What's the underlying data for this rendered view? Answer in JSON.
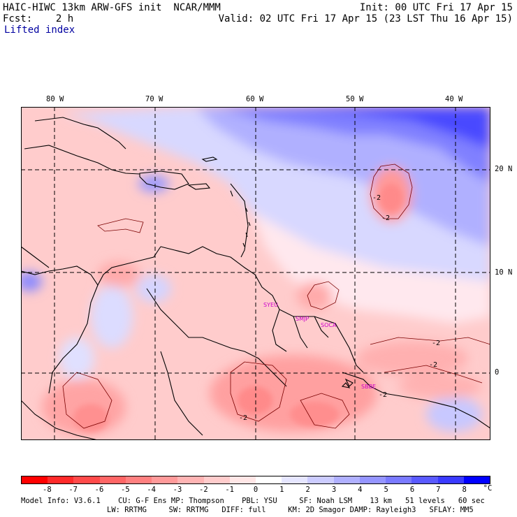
{
  "header": {
    "title": "HAIC-HIWC 13km ARW-GFS init  NCAR/MMM",
    "init": "Init: 00 UTC Fri 17 Apr 15",
    "fcst": "Fcst:    2 h",
    "valid": "Valid: 02 UTC Fri 17 Apr 15 (23 LST Thu 16 Apr 15)",
    "field": "Lifted index"
  },
  "map": {
    "lon_labels": [
      "80 W",
      "70 W",
      "60 W",
      "50 W",
      "40 W"
    ],
    "lat_labels": [
      "20 N",
      "10 N",
      "0"
    ],
    "contour_labels": [
      "-2",
      "-2",
      "-2",
      "-2",
      "-2",
      "-2"
    ],
    "stations": [
      "SYEU",
      "SMJP",
      "SOCA",
      "SBBE"
    ]
  },
  "colorbar": {
    "ticks": [
      "-8",
      "-7",
      "-6",
      "-5",
      "-4",
      "-3",
      "-2",
      "-1",
      "0",
      "1",
      "2",
      "3",
      "4",
      "5",
      "6",
      "7",
      "8",
      "°C"
    ],
    "colors": [
      "#ff0000",
      "#ff2a2a",
      "#ff4a4a",
      "#ff6666",
      "#ff8080",
      "#ff9a9a",
      "#ffb4b4",
      "#ffcccc",
      "#ffe6e6",
      "#ffffff",
      "#e6e6ff",
      "#ccccff",
      "#b0b0ff",
      "#9595ff",
      "#7a7aff",
      "#5a5aff",
      "#3a3aff",
      "#0000ff"
    ]
  },
  "footer": {
    "line1": "Model Info: V3.6.1    CU: G-F Ens MP: Thompson    PBL: YSU     SF: Noah LSM    13 km   51 levels   60 sec",
    "line2": "LW: RRTMG     SW: RRTMG   DIFF: full     KM: 2D Smagor DAMP: Rayleigh3   SFLAY: MM5"
  }
}
